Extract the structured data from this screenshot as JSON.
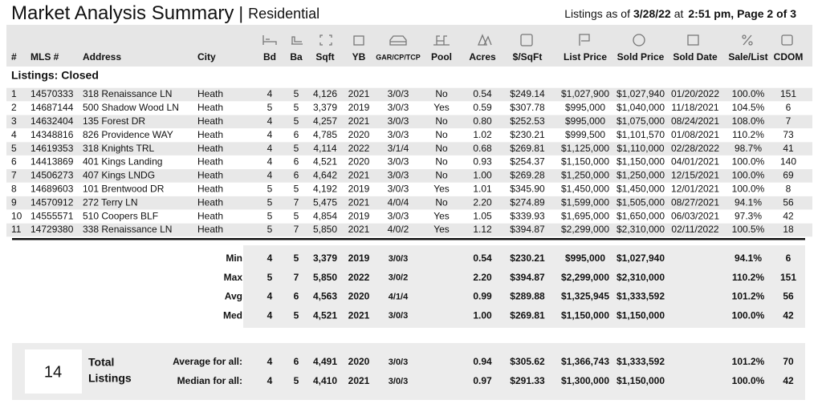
{
  "header": {
    "title": "Market Analysis Summary",
    "divider": "|",
    "subtitle": "Residential",
    "info": [
      "Listings as of",
      "3/28/22",
      "at",
      "2:51 pm, Page 2 of 3"
    ]
  },
  "columns": [
    "#",
    "MLS #",
    "Address",
    "City",
    "Bd",
    "Ba",
    "Sqft",
    "YB",
    "GAR/CP/TCP",
    "Pool",
    "Acres",
    "$/SqFt",
    "List Price",
    "Sold Price",
    "Sold Date",
    "Sale/List",
    "CDOM"
  ],
  "section_title": "Listings: Closed",
  "listings": {
    "rows": [
      [
        "1",
        "14570333",
        "318 Renaissance LN",
        "Heath",
        "4",
        "5",
        "4,126",
        "2021",
        "3/0/3",
        "No",
        "0.54",
        "$249.14",
        "$1,027,900",
        "$1,027,940",
        "01/20/2022",
        "100.0%",
        "151"
      ],
      [
        "2",
        "14687144",
        "500 Shadow Wood LN",
        "Heath",
        "5",
        "5",
        "3,379",
        "2019",
        "3/0/3",
        "Yes",
        "0.59",
        "$307.78",
        "$995,000",
        "$1,040,000",
        "11/18/2021",
        "104.5%",
        "6"
      ],
      [
        "3",
        "14632404",
        "135 Forest DR",
        "Heath",
        "4",
        "5",
        "4,257",
        "2021",
        "3/0/3",
        "No",
        "0.80",
        "$252.53",
        "$995,000",
        "$1,075,000",
        "08/24/2021",
        "108.0%",
        "7"
      ],
      [
        "4",
        "14348816",
        "826 Providence WAY",
        "Heath",
        "4",
        "6",
        "4,785",
        "2020",
        "3/0/3",
        "No",
        "1.02",
        "$230.21",
        "$999,500",
        "$1,101,570",
        "01/08/2021",
        "110.2%",
        "73"
      ],
      [
        "5",
        "14619353",
        "318 Knights TRL",
        "Heath",
        "4",
        "5",
        "4,114",
        "2022",
        "3/1/4",
        "No",
        "0.68",
        "$269.81",
        "$1,125,000",
        "$1,110,000",
        "02/28/2022",
        "98.7%",
        "41"
      ],
      [
        "6",
        "14413869",
        "401 Kings Landing",
        "Heath",
        "4",
        "6",
        "4,521",
        "2020",
        "3/0/3",
        "No",
        "0.93",
        "$254.37",
        "$1,150,000",
        "$1,150,000",
        "04/01/2021",
        "100.0%",
        "140"
      ],
      [
        "7",
        "14506273",
        "407 Kings LNDG",
        "Heath",
        "4",
        "6",
        "4,642",
        "2021",
        "3/0/3",
        "No",
        "1.00",
        "$269.28",
        "$1,250,000",
        "$1,250,000",
        "12/15/2021",
        "100.0%",
        "69"
      ],
      [
        "8",
        "14689603",
        "101 Brentwood DR",
        "Heath",
        "5",
        "5",
        "4,192",
        "2019",
        "3/0/3",
        "Yes",
        "1.01",
        "$345.90",
        "$1,450,000",
        "$1,450,000",
        "12/01/2021",
        "100.0%",
        "8"
      ],
      [
        "9",
        "14570912",
        "272 Terry LN",
        "Heath",
        "5",
        "7",
        "5,475",
        "2021",
        "4/0/4",
        "No",
        "2.20",
        "$274.89",
        "$1,599,000",
        "$1,505,000",
        "08/27/2021",
        "94.1%",
        "56"
      ],
      [
        "10",
        "14555571",
        "510 Coopers BLF",
        "Heath",
        "5",
        "5",
        "4,854",
        "2019",
        "3/0/3",
        "Yes",
        "1.05",
        "$339.93",
        "$1,695,000",
        "$1,650,000",
        "06/03/2021",
        "97.3%",
        "42"
      ],
      [
        "11",
        "14729380",
        "338 Renaissance LN",
        "Heath",
        "5",
        "7",
        "5,850",
        "2021",
        "4/0/2",
        "Yes",
        "1.12",
        "$394.87",
        "$2,299,000",
        "$2,310,000",
        "02/11/2022",
        "100.5%",
        "18"
      ]
    ]
  },
  "summary": {
    "rows": [
      {
        "label": "Min",
        "cells": [
          "4",
          "5",
          "3,379",
          "2019",
          "3/0/3",
          null,
          "0.54",
          "$230.21",
          "$995,000",
          "$1,027,940",
          null,
          "94.1%",
          "6"
        ]
      },
      {
        "label": "Max",
        "cells": [
          "5",
          "7",
          "5,850",
          "2022",
          "3/0/2",
          null,
          "2.20",
          "$394.87",
          "$2,299,000",
          "$2,310,000",
          null,
          "110.2%",
          "151"
        ]
      },
      {
        "label": "Avg",
        "cells": [
          "4",
          "6",
          "4,563",
          "2020",
          "4/1/4",
          null,
          "0.99",
          "$289.88",
          "$1,325,945",
          "$1,333,592",
          null,
          "101.2%",
          "56"
        ]
      },
      {
        "label": "Med",
        "cells": [
          "4",
          "5",
          "4,521",
          "2021",
          "3/0/3",
          null,
          "1.00",
          "$269.81",
          "$1,150,000",
          "$1,150,000",
          null,
          "100.0%",
          "42"
        ]
      }
    ]
  },
  "totals": {
    "count": "14",
    "label_lines": [
      "Total",
      "Listings"
    ],
    "rows": [
      {
        "label": "Average for all:",
        "cells": [
          "4",
          "6",
          "4,491",
          "2020",
          "3/0/3",
          null,
          "0.94",
          "$305.62",
          "$1,366,743",
          "$1,333,592",
          null,
          "101.2%",
          "70"
        ]
      },
      {
        "label": "Median for all:",
        "cells": [
          "4",
          "5",
          "4,410",
          "2021",
          "3/0/3",
          null,
          "0.97",
          "$291.33",
          "$1,300,000",
          "$1,150,000",
          null,
          "100.0%",
          "42"
        ]
      }
    ]
  }
}
